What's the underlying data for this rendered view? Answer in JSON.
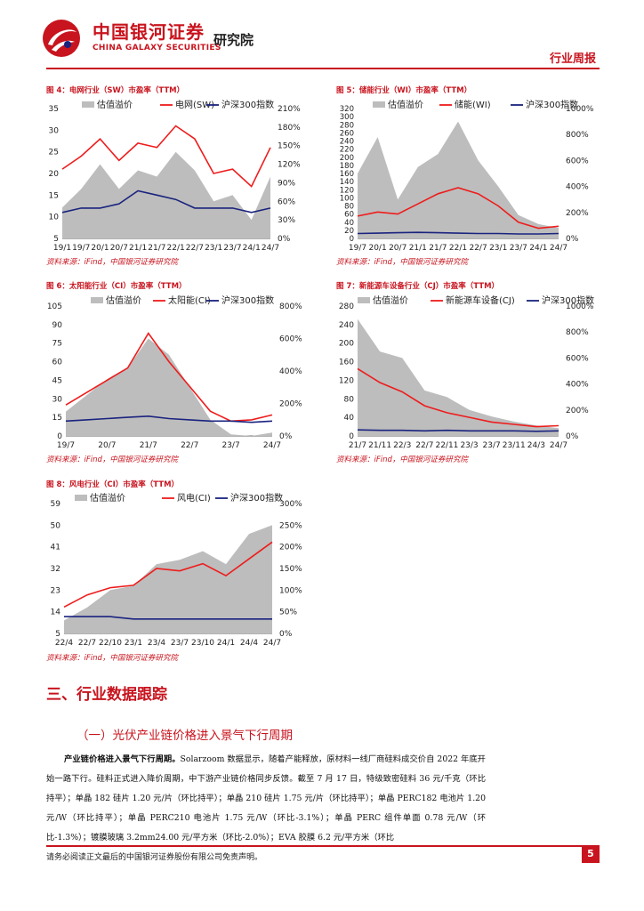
{
  "header": {
    "logo_cn": "中国银河证券",
    "logo_en": "CHINA GALAXY SECURITIES",
    "institute": "研究院",
    "report_type": "行业周报"
  },
  "charts": {
    "c4": {
      "title": "图 4：电网行业（SW）市盈率（TTM）",
      "source": "资料来源：iFind，中国银河证券研究院",
      "legend": [
        "估值溢价",
        "电网(SW)",
        "沪深300指数"
      ],
      "left_ticks": [
        "35",
        "30",
        "25",
        "20",
        "15",
        "10",
        "5"
      ],
      "right_ticks": [
        "210%",
        "180%",
        "150%",
        "120%",
        "90%",
        "60%",
        "30%",
        "0%"
      ],
      "x_ticks": [
        "19/1",
        "19/7",
        "20/1",
        "20/7",
        "21/1",
        "21/7",
        "22/1",
        "22/7",
        "23/1",
        "23/7",
        "24/1",
        "24/7"
      ]
    },
    "c5": {
      "title": "图 5：储能行业（WI）市盈率（TTM）",
      "source": "资料来源：iFind，中国银河证券研究院",
      "legend": [
        "估值溢价",
        "储能(WI)",
        "沪深300指数"
      ],
      "left_ticks": [
        "320",
        "300",
        "280",
        "260",
        "240",
        "220",
        "200",
        "180",
        "160",
        "140",
        "120",
        "100",
        "80",
        "60",
        "40",
        "20",
        "0"
      ],
      "right_ticks": [
        "1000%",
        "800%",
        "600%",
        "400%",
        "200%",
        "0%"
      ],
      "x_ticks": [
        "19/7",
        "20/1",
        "20/7",
        "21/1",
        "21/7",
        "22/1",
        "22/7",
        "23/1",
        "23/7",
        "24/1",
        "24/7"
      ]
    },
    "c6": {
      "title": "图 6：太阳能行业（CI）市盈率（TTM）",
      "source": "资料来源：iFind，中国银河证券研究院",
      "legend": [
        "估值溢价",
        "太阳能(CI)",
        "沪深300指数"
      ],
      "left_ticks": [
        "105",
        "90",
        "75",
        "60",
        "45",
        "30",
        "15",
        "0"
      ],
      "right_ticks": [
        "800%",
        "600%",
        "400%",
        "200%",
        "0%"
      ],
      "x_ticks": [
        "19/7",
        "20/7",
        "21/7",
        "22/7",
        "23/7",
        "24/7"
      ]
    },
    "c7": {
      "title": "图 7：新能源车设备行业（CJ）市盈率（TTM）",
      "source": "资料来源：iFind，中国银河证券研究院",
      "legend": [
        "估值溢价",
        "新能源车设备(CJ)",
        "沪深300指数"
      ],
      "left_ticks": [
        "280",
        "240",
        "200",
        "160",
        "120",
        "80",
        "40",
        "0"
      ],
      "right_ticks": [
        "1000%",
        "800%",
        "600%",
        "400%",
        "200%",
        "0%"
      ],
      "x_ticks": [
        "21/7",
        "21/11",
        "22/3",
        "22/7",
        "22/11",
        "23/3",
        "23/7",
        "23/11",
        "24/3",
        "24/7"
      ]
    },
    "c8": {
      "title": "图 8：风电行业（CI）市盈率（TTM）",
      "source": "资料来源：iFind，中国银河证券研究院",
      "legend": [
        "估值溢价",
        "风电(CI)",
        "沪深300指数"
      ],
      "left_ticks": [
        "59",
        "50",
        "41",
        "32",
        "23",
        "14",
        "5"
      ],
      "right_ticks": [
        "300%",
        "250%",
        "200%",
        "150%",
        "100%",
        "50%",
        "0%"
      ],
      "x_ticks": [
        "22/4",
        "22/7",
        "22/10",
        "23/1",
        "23/4",
        "23/7",
        "23/10",
        "24/1",
        "24/4",
        "24/7"
      ]
    }
  },
  "chart_data": [
    {
      "type": "line",
      "title": "图 4：电网行业（SW）市盈率（TTM）",
      "left_range": [
        5,
        35
      ],
      "right_range": [
        0,
        210
      ],
      "series": [
        {
          "name": "估值溢价",
          "axis": "right",
          "kind": "area",
          "x": [
            0,
            6,
            12,
            18,
            24,
            30,
            36,
            42,
            48,
            54,
            60,
            66
          ],
          "values": [
            50,
            80,
            120,
            80,
            110,
            100,
            140,
            110,
            60,
            70,
            30,
            100
          ]
        },
        {
          "name": "电网(SW)",
          "axis": "left",
          "x": [
            0,
            6,
            12,
            18,
            24,
            30,
            36,
            42,
            48,
            54,
            60,
            66
          ],
          "values": [
            21,
            24,
            28,
            23,
            27,
            26,
            31,
            28,
            20,
            21,
            17,
            26
          ]
        },
        {
          "name": "沪深300指数",
          "axis": "left",
          "x": [
            0,
            6,
            12,
            18,
            24,
            30,
            36,
            42,
            48,
            54,
            60,
            66
          ],
          "values": [
            11,
            12,
            12,
            13,
            16,
            15,
            14,
            12,
            12,
            12,
            11,
            12
          ]
        }
      ]
    },
    {
      "type": "line",
      "title": "图 5：储能行业（WI）市盈率（TTM）",
      "left_range": [
        0,
        320
      ],
      "right_range": [
        0,
        1000
      ],
      "series": [
        {
          "name": "估值溢价",
          "axis": "right",
          "kind": "area",
          "x": [
            0,
            6,
            12,
            18,
            24,
            30,
            36,
            42,
            48,
            54,
            60
          ],
          "values": [
            500,
            780,
            300,
            550,
            650,
            900,
            600,
            400,
            180,
            110,
            80
          ]
        },
        {
          "name": "储能(WI)",
          "axis": "left",
          "x": [
            0,
            6,
            12,
            18,
            24,
            30,
            36,
            42,
            48,
            54,
            60
          ],
          "values": [
            55,
            65,
            60,
            85,
            110,
            125,
            110,
            80,
            40,
            25,
            30
          ]
        },
        {
          "name": "沪深300指数",
          "axis": "left",
          "x": [
            0,
            6,
            12,
            18,
            24,
            30,
            36,
            42,
            48,
            54,
            60
          ],
          "values": [
            12,
            13,
            14,
            15,
            14,
            13,
            12,
            12,
            11,
            11,
            12
          ]
        }
      ]
    },
    {
      "type": "line",
      "title": "图 6：太阳能行业（CI）市盈率（TTM）",
      "left_range": [
        0,
        105
      ],
      "right_range": [
        0,
        800
      ],
      "series": [
        {
          "name": "估值溢价",
          "axis": "right",
          "kind": "area",
          "x": [
            0,
            6,
            12,
            18,
            24,
            30,
            36,
            42,
            48,
            54,
            60
          ],
          "values": [
            150,
            250,
            350,
            420,
            600,
            500,
            300,
            100,
            10,
            0,
            20
          ]
        },
        {
          "name": "太阳能(CI)",
          "axis": "left",
          "x": [
            0,
            6,
            12,
            18,
            24,
            30,
            36,
            42,
            48,
            54,
            60
          ],
          "values": [
            25,
            35,
            45,
            55,
            83,
            60,
            40,
            20,
            12,
            13,
            17
          ]
        },
        {
          "name": "沪深300指数",
          "axis": "left",
          "x": [
            0,
            6,
            12,
            18,
            24,
            30,
            36,
            42,
            48,
            54,
            60
          ],
          "values": [
            12,
            13,
            14,
            15,
            16,
            14,
            13,
            12,
            12,
            11,
            12
          ]
        }
      ]
    },
    {
      "type": "line",
      "title": "图 7：新能源车设备行业（CJ）市盈率（TTM）",
      "left_range": [
        0,
        280
      ],
      "right_range": [
        0,
        1000
      ],
      "series": [
        {
          "name": "估值溢价",
          "axis": "right",
          "kind": "area",
          "x": [
            0,
            4,
            8,
            12,
            16,
            20,
            24,
            28,
            32,
            36
          ],
          "values": [
            900,
            650,
            600,
            350,
            300,
            200,
            150,
            110,
            80,
            60
          ]
        },
        {
          "name": "新能源车设备(CJ)",
          "axis": "left",
          "x": [
            0,
            4,
            8,
            12,
            16,
            20,
            24,
            28,
            32,
            36
          ],
          "values": [
            145,
            115,
            95,
            65,
            50,
            40,
            30,
            25,
            20,
            22
          ]
        },
        {
          "name": "沪深300指数",
          "axis": "left",
          "x": [
            0,
            4,
            8,
            12,
            16,
            20,
            24,
            28,
            32,
            36
          ],
          "values": [
            13,
            12,
            12,
            11,
            12,
            11,
            11,
            11,
            10,
            11
          ]
        }
      ]
    },
    {
      "type": "line",
      "title": "图 8：风电行业（CI）市盈率（TTM）",
      "left_range": [
        5,
        59
      ],
      "right_range": [
        0,
        300
      ],
      "series": [
        {
          "name": "估值溢价",
          "axis": "right",
          "kind": "area",
          "x": [
            0,
            3,
            6,
            9,
            12,
            15,
            18,
            21,
            24,
            27
          ],
          "values": [
            30,
            60,
            100,
            110,
            160,
            170,
            190,
            160,
            230,
            250
          ]
        },
        {
          "name": "风电(CI)",
          "axis": "left",
          "x": [
            0,
            3,
            6,
            9,
            12,
            15,
            18,
            21,
            24,
            27
          ],
          "values": [
            16,
            21,
            24,
            25,
            32,
            31,
            34,
            29,
            36,
            43
          ]
        },
        {
          "name": "沪深300指数",
          "axis": "left",
          "x": [
            0,
            3,
            6,
            9,
            12,
            15,
            18,
            21,
            24,
            27
          ],
          "values": [
            12,
            12,
            12,
            11,
            11,
            11,
            11,
            11,
            11,
            11
          ]
        }
      ]
    }
  ],
  "section": {
    "title": "三、行业数据跟踪",
    "subtitle": "（一）光伏产业链价格进入景气下行周期",
    "para_lead": "产业链价格进入景气下行周期。",
    "para_body": "Solarzoom 数据显示，随着产能释放，原材料一线厂商硅料成交价自 2022 年底开始一路下行。硅料正式进入降价周期，中下游产业链价格同步反馈。截至 7 月 17 日，特级致密硅料 36 元/千克（环比持平）；单晶 182 硅片 1.20 元/片（环比持平）；单晶 210 硅片 1.75 元/片（环比持平）；单晶 PERC182 电池片 1.20 元/W（环比持平）；单晶 PERC210 电池片 1.75 元/W（环比-3.1%）；单晶 PERC 组件单面 0.78 元/W（环比-1.3%）；镀膜玻璃 3.2mm24.00 元/平方米（环比-2.0%）；EVA 胶膜 6.2 元/平方米（环比"
  },
  "footer": {
    "disclaimer": "请务必阅读正文最后的中国银河证券股份有限公司免责声明。",
    "page": "5"
  },
  "colors": {
    "brand_red": "#c8141e",
    "area_gray": "#bdbdbd",
    "line_red": "#ee1c1c",
    "line_navy": "#1a237e"
  }
}
